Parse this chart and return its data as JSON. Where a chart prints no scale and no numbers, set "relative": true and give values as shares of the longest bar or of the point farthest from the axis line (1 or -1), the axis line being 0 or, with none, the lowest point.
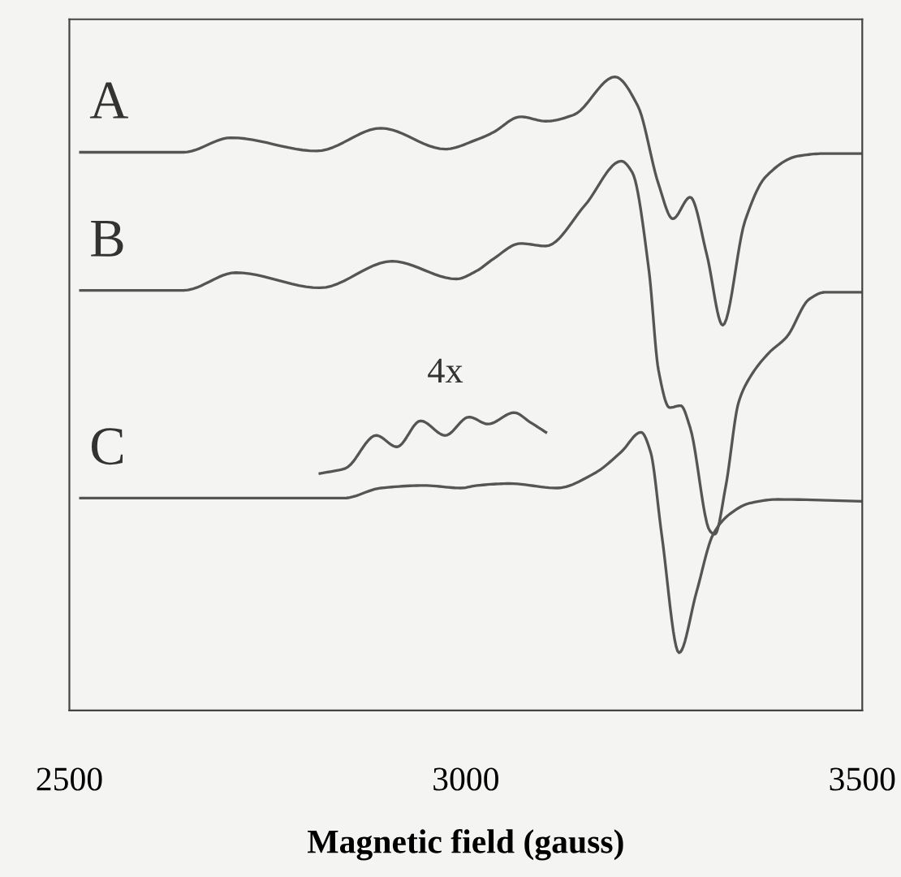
{
  "chart_data": {
    "type": "line",
    "relative": true,
    "xlabel": "Magnetic field (gauss)",
    "xlim": [
      2500,
      3500
    ],
    "xticks": [
      2500,
      3000,
      3500
    ],
    "grid": false,
    "marker": "none",
    "line_style": "solid",
    "series": [
      {
        "color": "#555555",
        "x": [
          2514,
          2644,
          2704,
          2812,
          2893,
          2974,
          3014,
          3034,
          3069,
          3101,
          3136,
          3188,
          3217,
          3243,
          3261,
          3283,
          3304,
          3324,
          3352,
          3378,
          3419,
          3453,
          3500
        ],
        "values": [
          0.881,
          0.881,
          0.904,
          0.883,
          0.919,
          0.886,
          0.901,
          0.912,
          0.937,
          0.93,
          0.94,
          1.0,
          0.954,
          0.831,
          0.776,
          0.81,
          0.719,
          0.608,
          0.772,
          0.842,
          0.875,
          0.879,
          0.879
        ]
      },
      {
        "color": "#555555",
        "x": [
          2514,
          2644,
          2710,
          2816,
          2907,
          2988,
          3014,
          3034,
          3069,
          3101,
          3150,
          3196,
          3210,
          3231,
          3243,
          3257,
          3271,
          3283,
          3308,
          3314,
          3328,
          3344,
          3358,
          3382,
          3405,
          3433,
          3453,
          3500
        ],
        "values": [
          0.663,
          0.663,
          0.691,
          0.667,
          0.709,
          0.681,
          0.694,
          0.712,
          0.737,
          0.733,
          0.797,
          0.867,
          0.849,
          0.694,
          0.537,
          0.478,
          0.481,
          0.446,
          0.283,
          0.278,
          0.355,
          0.486,
          0.525,
          0.564,
          0.59,
          0.649,
          0.66,
          0.66
        ]
      },
      {
        "color": "#555555",
        "x": [
          2514,
          2846,
          2893,
          2947,
          2994,
          3014,
          3055,
          3115,
          3162,
          3196,
          3221,
          3233,
          3247,
          3269,
          3291,
          3312,
          3332,
          3358,
          3393,
          3500
        ],
        "values": [
          0.335,
          0.335,
          0.351,
          0.355,
          0.351,
          0.355,
          0.358,
          0.351,
          0.374,
          0.408,
          0.439,
          0.408,
          0.278,
          0.091,
          0.187,
          0.278,
          0.309,
          0.327,
          0.333,
          0.33
        ]
      },
      {
        "color": "#555555",
        "x": [
          2816,
          2848,
          2887,
          2913,
          2943,
          2974,
          3004,
          3028,
          3061,
          3081,
          3101
        ],
        "values": [
          0.374,
          0.382,
          0.434,
          0.416,
          0.457,
          0.434,
          0.463,
          0.452,
          0.47,
          0.455,
          0.439
        ]
      }
    ],
    "annotations": [
      "A",
      "B",
      "C",
      "4x"
    ]
  }
}
